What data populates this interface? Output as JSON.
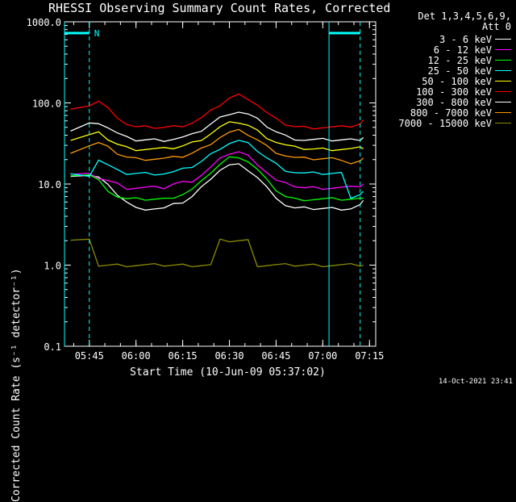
{
  "chart_data": {
    "type": "line",
    "title": "RHESSI Observing Summary Count Rates, Corrected",
    "xlabel": "Start Time (10-Jun-09 05:37:02)",
    "ylabel": "Corrected Count Rate (s⁻¹ detector⁻¹)",
    "y_scale": "log",
    "ylim": [
      0.1,
      1000
    ],
    "y_ticks": [
      "1000.0",
      "100.0",
      "10.0",
      "1.0",
      "0.1"
    ],
    "x_range": [
      "05:37:02",
      "07:17:00"
    ],
    "x_ticks": [
      "05:45",
      "06:00",
      "06:15",
      "06:30",
      "06:45",
      "07:00",
      "07:15"
    ],
    "grid": false,
    "legend_placement": "outside-right",
    "legend_header": [
      "Det 1,3,4,5,6,9,",
      "Att 0"
    ],
    "x": [
      "05:39",
      "05:45",
      "05:48",
      "05:51",
      "05:54",
      "05:57",
      "06:00",
      "06:03",
      "06:06",
      "06:09",
      "06:12",
      "06:15",
      "06:18",
      "06:21",
      "06:24",
      "06:27",
      "06:30",
      "06:33",
      "06:36",
      "06:39",
      "06:42",
      "06:45",
      "06:48",
      "06:51",
      "06:54",
      "06:57",
      "07:00",
      "07:03",
      "07:06",
      "07:09",
      "07:12",
      "07:13"
    ],
    "series": [
      {
        "name": "3 - 6 keV",
        "color": "#ffffff",
        "values": [
          13,
          13,
          12,
          9.5,
          7.5,
          6,
          5,
          5,
          5,
          5,
          5.5,
          6,
          7,
          9,
          12,
          15,
          17,
          17,
          15,
          12,
          9,
          7,
          5.5,
          5,
          5,
          5,
          5,
          5,
          5,
          5,
          5.5,
          6
        ]
      },
      {
        "name": "6 - 12 keV",
        "color": "#ff00ff",
        "values": [
          13,
          13,
          12,
          11,
          10,
          9,
          9,
          9,
          9,
          9,
          10,
          10.5,
          11,
          13,
          16,
          20,
          24,
          25,
          22,
          18,
          14,
          11,
          10,
          9.5,
          9,
          9,
          9,
          9,
          9,
          9,
          9.5,
          10
        ]
      },
      {
        "name": "12 - 25 keV",
        "color": "#00ff00",
        "values": [
          13,
          13,
          11,
          8.5,
          7,
          6.5,
          6.5,
          6.5,
          6.5,
          6.5,
          7,
          7.5,
          8.5,
          10.5,
          14,
          17.5,
          21,
          22,
          19,
          15,
          11,
          8.5,
          7,
          6.5,
          6.5,
          6.5,
          6.5,
          6.5,
          6.5,
          6.5,
          6.5,
          7
        ]
      },
      {
        "name": "25 - 50 keV",
        "color": "#00ffff",
        "values": [
          13,
          13,
          20,
          17,
          14.5,
          13.5,
          13.5,
          13.5,
          13.5,
          13.5,
          14,
          15,
          16.5,
          19,
          23,
          28,
          32,
          34,
          31,
          26,
          21,
          17.5,
          15,
          14,
          13.5,
          13.5,
          13.5,
          13.5,
          13.5,
          7,
          7.5,
          8
        ]
      },
      {
        "name": "50 - 100 keV",
        "color": "#ffff00",
        "values": [
          35,
          40,
          42,
          36,
          31,
          28,
          27,
          27,
          27,
          27,
          28,
          29.5,
          32,
          36,
          42,
          50,
          56,
          58,
          53,
          45,
          38,
          33,
          30,
          28,
          27.5,
          27,
          27,
          27,
          27,
          27,
          27.5,
          28
        ]
      },
      {
        "name": "100 - 300 keV",
        "color": "#ff0000",
        "values": [
          80,
          95,
          105,
          85,
          68,
          55,
          50,
          50,
          50,
          50,
          51,
          53,
          57,
          65,
          78,
          95,
          115,
          125,
          115,
          95,
          75,
          62,
          55,
          51,
          50,
          50,
          50,
          50,
          50,
          52,
          55,
          60
        ]
      },
      {
        "name": "300 - 800 keV",
        "color": "#ffffff",
        "values": [
          45,
          55,
          58,
          50,
          42,
          37,
          35,
          35,
          35,
          35,
          36,
          37.5,
          40,
          46,
          55,
          65,
          75,
          78,
          72,
          62,
          52,
          44,
          39,
          36.5,
          35,
          35,
          35,
          35,
          35,
          35,
          36,
          38
        ]
      },
      {
        "name": "800 - 7000 keV",
        "color": "#ff9900",
        "values": [
          25,
          30,
          32,
          28,
          24,
          21.5,
          20.5,
          20.5,
          20.5,
          20.5,
          21,
          22,
          24,
          27,
          32,
          38,
          43,
          45,
          41,
          35,
          29,
          25,
          22.5,
          21,
          20.5,
          20.5,
          20.5,
          20.5,
          20.5,
          18,
          19,
          20
        ]
      },
      {
        "name": "7000 - 15000 keV",
        "color": "#8b8b00",
        "values": [
          2,
          2,
          1,
          1,
          1,
          1,
          1,
          1,
          1,
          1,
          1,
          1,
          1,
          1,
          1,
          2,
          2,
          2,
          2,
          1,
          1,
          1,
          1,
          1,
          1,
          1,
          1,
          1,
          1,
          1,
          1,
          1
        ]
      }
    ],
    "attenuator_indicator": {
      "label": "N",
      "spans": [
        [
          "05:37:02",
          "05:45"
        ],
        [
          "07:02",
          "07:12"
        ]
      ]
    }
  },
  "footer": {
    "timestamp": "14-Oct-2021 23:41"
  }
}
